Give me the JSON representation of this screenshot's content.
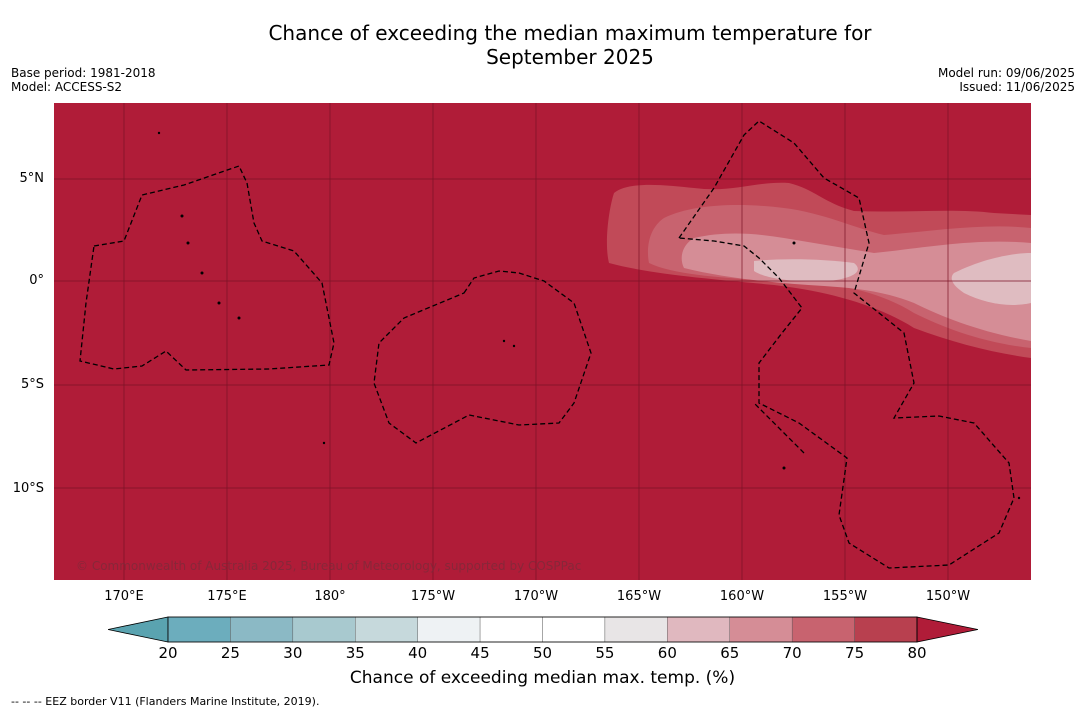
{
  "title_line1": "Chance of exceeding the median maximum temperature for",
  "title_line2": "September 2025",
  "meta": {
    "base_period": "Base period: 1981-2018",
    "model": "Model: ACCESS-S2",
    "model_run": "Model run: 09/06/2025",
    "issued": "Issued: 11/06/2025"
  },
  "lat_labels": [
    "5°N",
    "0°",
    "5°S",
    "10°S"
  ],
  "lon_labels": [
    "170°E",
    "175°E",
    "180°",
    "175°W",
    "170°W",
    "165°W",
    "160°W",
    "155°W",
    "150°W"
  ],
  "copyright": "© Commonwealth of Australia 2025, Bureau of Meteorology, supported by COSPPac",
  "colorbar": {
    "ticks": [
      "20",
      "25",
      "30",
      "35",
      "40",
      "45",
      "50",
      "55",
      "60",
      "65",
      "70",
      "75",
      "80"
    ],
    "colors": [
      "#5aa3b0",
      "#6cadbd",
      "#8bb9c5",
      "#a8c9cf",
      "#c6d9dc",
      "#eef2f4",
      "#ffffff",
      "#ffffff",
      "#e8e5e6",
      "#e0b8bf",
      "#d58d96",
      "#c8636f",
      "#b8404f",
      "#b01c38"
    ],
    "label": "Chance of exceeding median max. temp. (%)"
  },
  "eez_note": "--  --  -- EEZ border V11 (Flanders Marine Institute, 2019).",
  "map_colors": {
    "background": "#b01c38",
    "band75": "#c14a58",
    "band70": "#c8636f",
    "band65": "#d58d96",
    "band60": "#dfbcc1"
  }
}
